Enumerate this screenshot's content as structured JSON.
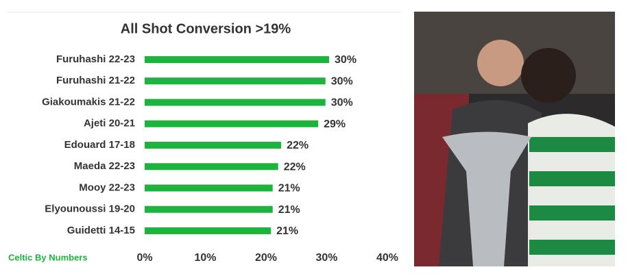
{
  "chart_data": {
    "type": "barh",
    "title": "All Shot Conversion >19%",
    "source": "Celtic By Numbers",
    "categories": [
      "Furuhashi 22-23",
      "Furuhashi 21-22",
      "Giakoumakis 21-22",
      "Ajeti 20-21",
      "Edouard 17-18",
      "Maeda 22-23",
      "Mooy 22-23",
      "Elyounoussi 19-20",
      "Guidetti 14-15"
    ],
    "values": [
      30.4,
      29.8,
      29.8,
      28.6,
      22.5,
      22.0,
      21.1,
      21.1,
      20.8
    ],
    "value_labels": [
      "30%",
      "30%",
      "30%",
      "29%",
      "22%",
      "22%",
      "21%",
      "21%",
      "21%"
    ],
    "color": "#1cb43c",
    "xlim": [
      0,
      40
    ],
    "xticks": [
      {
        "value": 0,
        "label": "0%"
      },
      {
        "value": 10,
        "label": "10%"
      },
      {
        "value": 20,
        "label": "20%"
      },
      {
        "value": 30,
        "label": "30%"
      },
      {
        "value": 40,
        "label": "40%"
      }
    ],
    "grid": false
  }
}
